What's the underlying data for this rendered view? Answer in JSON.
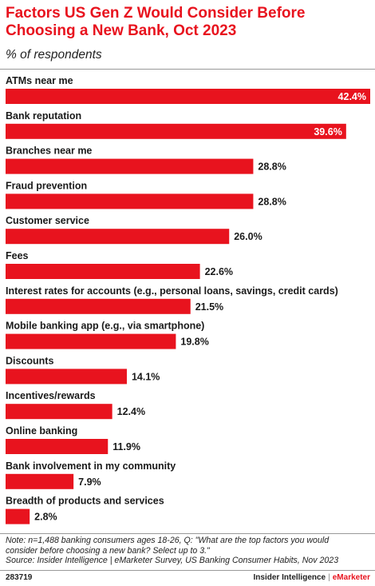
{
  "header": {
    "title": "Factors US Gen Z Would Consider Before Choosing a New Bank, Oct 2023",
    "subtitle": "% of respondents"
  },
  "chart_data": {
    "type": "bar",
    "orientation": "horizontal",
    "title": "Factors US Gen Z Would Consider Before Choosing a New Bank, Oct 2023",
    "subtitle": "% of respondents",
    "categories": [
      "ATMs near me",
      "Bank reputation",
      "Branches near me",
      "Fraud prevention",
      "Customer service",
      "Fees",
      "Interest rates for accounts (e.g., personal loans, savings, credit cards)",
      "Mobile banking app (e.g., via smartphone)",
      "Discounts",
      "Incentives/rewards",
      "Online banking",
      "Bank involvement in my community",
      "Breadth of products and services"
    ],
    "values": [
      42.4,
      39.6,
      28.8,
      28.8,
      26.0,
      22.6,
      21.5,
      19.8,
      14.1,
      12.4,
      11.9,
      7.9,
      2.8
    ],
    "value_labels": [
      "42.4%",
      "39.6%",
      "28.8%",
      "28.8%",
      "26.0%",
      "22.6%",
      "21.5%",
      "19.8%",
      "14.1%",
      "12.4%",
      "11.9%",
      "7.9%",
      "2.8%"
    ],
    "xlim": [
      0,
      42.4
    ],
    "bar_color": "#e8131e",
    "grid": false,
    "legend": "none"
  },
  "footer": {
    "note_line1": "Note: n=1,488 banking consumers ages 18-26, Q: \"What are the top factors you would",
    "note_line2": "consider before choosing a new bank? Select up to 3.\"",
    "source": "Source: Insider Intelligence | eMarketer Survey, US Banking Consumer Habits, Nov 2023",
    "chart_id": "283719",
    "brand_left": "Insider Intelligence",
    "brand_sep": "|",
    "brand_right": "eMarketer"
  },
  "colors": {
    "accent": "#e8131e",
    "text": "#1a1a1a",
    "on_bar_text": "#ffffff"
  }
}
